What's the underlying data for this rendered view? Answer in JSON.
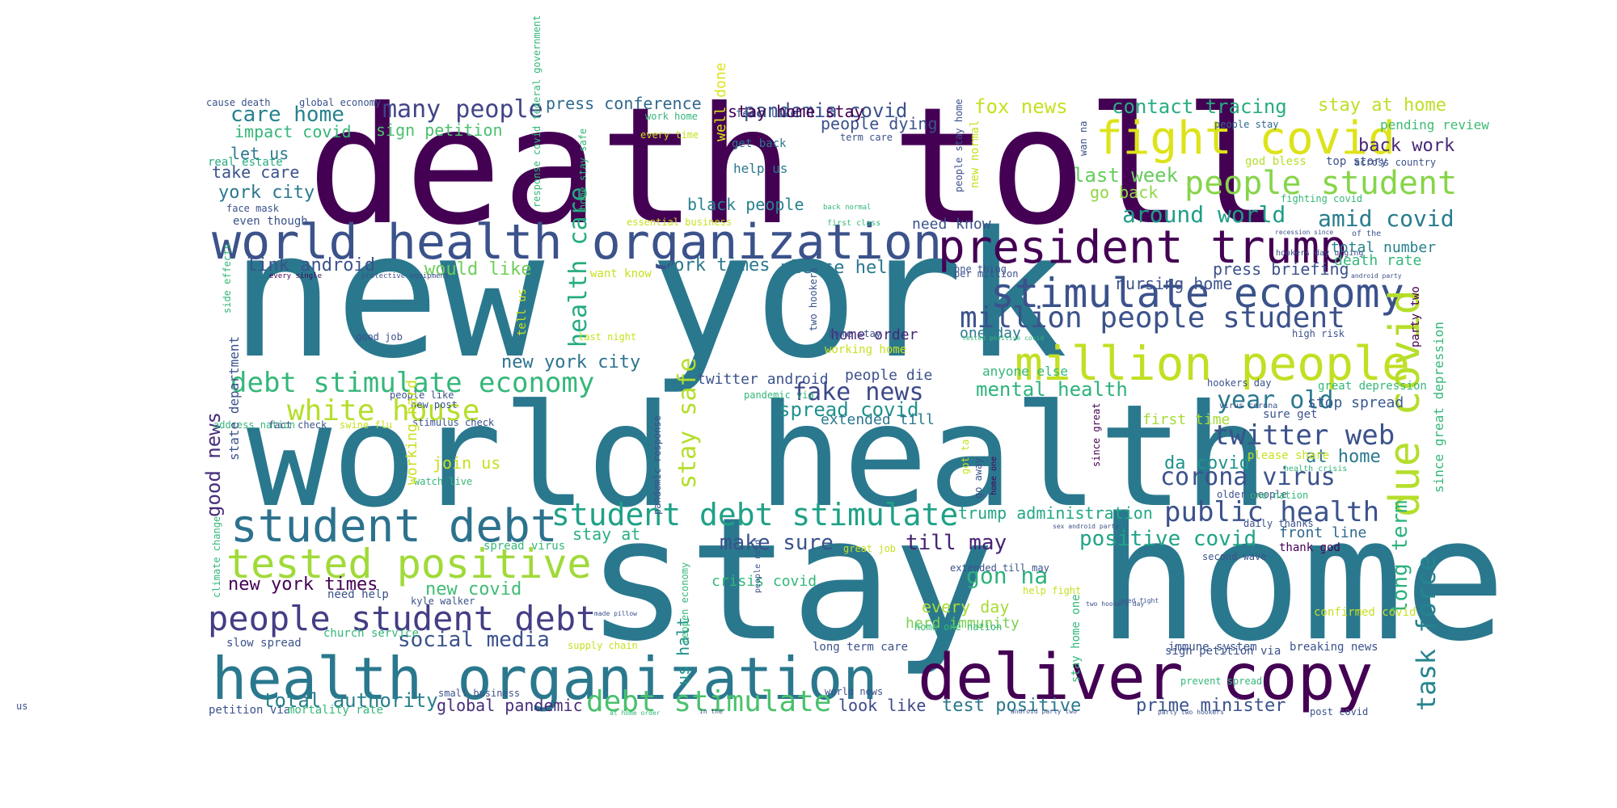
{
  "words": [
    {
      "text": "death toll",
      "color": "#440154"
    },
    {
      "text": "new york",
      "color": "#2a788e"
    },
    {
      "text": "world health",
      "color": "#2a788e"
    },
    {
      "text": "stay home",
      "color": "#2a788e"
    },
    {
      "text": "world health organization",
      "color": "#3b528b"
    },
    {
      "text": "health organization",
      "color": "#2a788e"
    },
    {
      "text": "deliver copy",
      "color": "#440154"
    },
    {
      "text": "president trump",
      "color": "#440154"
    },
    {
      "text": "fight covid",
      "color": "#dde318"
    },
    {
      "text": "stimulate economy",
      "color": "#3b528b"
    },
    {
      "text": "million people",
      "color": "#c2df23"
    },
    {
      "text": "million people student",
      "color": "#3b528b"
    },
    {
      "text": "people student",
      "color": "#86d549"
    },
    {
      "text": "student debt",
      "color": "#2c728e"
    },
    {
      "text": "tested positive",
      "color": "#a0da39"
    },
    {
      "text": "people student debt",
      "color": "#433e85"
    },
    {
      "text": "student debt stimulate",
      "color": "#1fa187"
    },
    {
      "text": "debt stimulate economy",
      "color": "#35b779"
    },
    {
      "text": "white house",
      "color": "#b5de2b"
    },
    {
      "text": "due covid",
      "color": "#b5de2b"
    },
    {
      "text": "task force",
      "color": "#25848e"
    },
    {
      "text": "twitter web",
      "color": "#3b528b"
    },
    {
      "text": "public health",
      "color": "#3b528b"
    },
    {
      "text": "corona virus",
      "color": "#3b528b"
    },
    {
      "text": "debt stimulate",
      "color": "#4ac16d"
    },
    {
      "text": "fake news",
      "color": "#3e4989"
    },
    {
      "text": "many people",
      "color": "#414487"
    },
    {
      "text": "health care",
      "color": "#25ab82"
    },
    {
      "text": "stay safe",
      "color": "#b5de2b"
    },
    {
      "text": "year old",
      "color": "#2a788e"
    },
    {
      "text": "around world",
      "color": "#1f9e89"
    },
    {
      "text": "amid covid",
      "color": "#287c8e"
    },
    {
      "text": "positive covid",
      "color": "#20a486"
    },
    {
      "text": "social media",
      "color": "#3b528b"
    },
    {
      "text": "care home",
      "color": "#26828e"
    },
    {
      "text": "pandemia covid",
      "color": "#3b528b"
    },
    {
      "text": "contact tracing",
      "color": "#27ad81"
    },
    {
      "text": "stay at home",
      "color": "#bddf26"
    },
    {
      "text": "fox news",
      "color": "#c8e020"
    },
    {
      "text": "press conference",
      "color": "#31688e"
    },
    {
      "text": "mental health",
      "color": "#2eb37c"
    },
    {
      "text": "long term",
      "color": "#2db27d"
    },
    {
      "text": "gon na",
      "color": "#2db27d"
    },
    {
      "text": "make sure",
      "color": "#3b528b"
    },
    {
      "text": "till may",
      "color": "#482374"
    },
    {
      "text": "spread covid",
      "color": "#21918c"
    },
    {
      "text": "last week",
      "color": "#67cc5c"
    },
    {
      "text": "back work",
      "color": "#482878"
    },
    {
      "text": "total authority",
      "color": "#277f8e"
    },
    {
      "text": "test positive",
      "color": "#2a788e"
    },
    {
      "text": "prime minister",
      "color": "#3b528b"
    },
    {
      "text": "new york city",
      "color": "#2c728e"
    },
    {
      "text": "new york times",
      "color": "#440154"
    },
    {
      "text": "good news",
      "color": "#472d7b"
    },
    {
      "text": "link android",
      "color": "#3b528b"
    },
    {
      "text": "york times",
      "color": "#2a788e"
    },
    {
      "text": "please help",
      "color": "#2a788e"
    },
    {
      "text": "would like",
      "color": "#6ece58"
    },
    {
      "text": "impact covid",
      "color": "#35b779"
    },
    {
      "text": "sign petition",
      "color": "#4ac16d"
    },
    {
      "text": "let us",
      "color": "#2a788e"
    },
    {
      "text": "take care",
      "color": "#3b528b"
    },
    {
      "text": "york city",
      "color": "#2a788e"
    },
    {
      "text": "black people",
      "color": "#26828e"
    },
    {
      "text": "people dying",
      "color": "#3b528b"
    },
    {
      "text": "go back",
      "color": "#8fd744"
    },
    {
      "text": "trump administration",
      "color": "#22a785"
    },
    {
      "text": "da covid",
      "color": "#21918c"
    },
    {
      "text": "at home",
      "color": "#2a788e"
    },
    {
      "text": "new covid",
      "color": "#3fbc73"
    },
    {
      "text": "global pandemic",
      "color": "#472d7b"
    },
    {
      "text": "look like",
      "color": "#3e4989"
    },
    {
      "text": "every day",
      "color": "#a8db34"
    },
    {
      "text": "herd immunity",
      "color": "#7ad151"
    },
    {
      "text": "crisis covid",
      "color": "#35b779"
    },
    {
      "text": "stay at",
      "color": "#29af7f"
    },
    {
      "text": "join us",
      "color": "#c8e020"
    },
    {
      "text": "us halt",
      "color": "#21918c"
    },
    {
      "text": "nursing home",
      "color": "#3b528b"
    },
    {
      "text": "press briefing",
      "color": "#3b528b"
    },
    {
      "text": "total number",
      "color": "#26828e"
    },
    {
      "text": "death rate",
      "color": "#35b779"
    },
    {
      "text": "stop spread",
      "color": "#38598c"
    },
    {
      "text": "first time",
      "color": "#a5db36"
    },
    {
      "text": "front line",
      "color": "#31688e"
    },
    {
      "text": "need know",
      "color": "#3b528b"
    },
    {
      "text": "twitter android",
      "color": "#3b528b"
    },
    {
      "text": "people die",
      "color": "#3b528b"
    },
    {
      "text": "extended till",
      "color": "#2a788e"
    },
    {
      "text": "home order",
      "color": "#482677"
    },
    {
      "text": "one day",
      "color": "#2a788e"
    },
    {
      "text": "well done",
      "color": "#dde318"
    },
    {
      "text": "help us",
      "color": "#2a788e"
    },
    {
      "text": "get back",
      "color": "#2a788e"
    },
    {
      "text": "feel like",
      "color": "#38598c"
    },
    {
      "text": "god bless",
      "color": "#b5de2b"
    },
    {
      "text": "top story",
      "color": "#3b528b"
    },
    {
      "text": "pending review",
      "color": "#3dbc74"
    },
    {
      "text": "people stay",
      "color": "#31688e"
    },
    {
      "text": "across country",
      "color": "#3b528b"
    },
    {
      "text": "real estate",
      "color": "#25ab82"
    },
    {
      "text": "global economy",
      "color": "#3b528b"
    },
    {
      "text": "cause death",
      "color": "#3b528b"
    },
    {
      "text": "even though",
      "color": "#3b528b"
    },
    {
      "text": "face mask",
      "color": "#3b528b"
    },
    {
      "text": "want know",
      "color": "#c8e020"
    },
    {
      "text": "need help",
      "color": "#3b528b"
    },
    {
      "text": "church service",
      "color": "#35b779"
    },
    {
      "text": "slow spread",
      "color": "#3b528b"
    },
    {
      "text": "petition via",
      "color": "#3b528b"
    },
    {
      "text": "mortality rate",
      "color": "#35b779"
    },
    {
      "text": "small business",
      "color": "#3b528b"
    },
    {
      "text": "supply chain",
      "color": "#c8e020"
    },
    {
      "text": "long term care",
      "color": "#3b528b"
    },
    {
      "text": "world news",
      "color": "#3b528b"
    },
    {
      "text": "immune system",
      "color": "#3b528b"
    },
    {
      "text": "sign petition via",
      "color": "#3b528b"
    },
    {
      "text": "breaking news",
      "color": "#3b528b"
    },
    {
      "text": "prevent spread",
      "color": "#35b779"
    },
    {
      "text": "post covid",
      "color": "#3b528b"
    },
    {
      "text": "confirmed covid",
      "color": "#c8e020"
    },
    {
      "text": "thank god",
      "color": "#440154"
    },
    {
      "text": "daily thanks",
      "color": "#3b528b"
    },
    {
      "text": "second wave",
      "color": "#3b528b"
    },
    {
      "text": "address nation",
      "color": "#35b779"
    },
    {
      "text": "fact check",
      "color": "#3b528b"
    },
    {
      "text": "swine flu",
      "color": "#c8e020"
    },
    {
      "text": "stimulus check",
      "color": "#3b528b"
    },
    {
      "text": "new post",
      "color": "#3b528b"
    },
    {
      "text": "people like",
      "color": "#3b528b"
    },
    {
      "text": "watch live",
      "color": "#35b779"
    },
    {
      "text": "spread virus",
      "color": "#35b779"
    },
    {
      "text": "great job",
      "color": "#c8e020"
    },
    {
      "text": "help fight",
      "color": "#c8e020"
    },
    {
      "text": "sure get",
      "color": "#3b528b"
    },
    {
      "text": "great depression",
      "color": "#35b779"
    },
    {
      "text": "please share",
      "color": "#c8e020"
    },
    {
      "text": "older people",
      "color": "#3b528b"
    },
    {
      "text": "one nation",
      "color": "#35b779"
    },
    {
      "text": "health crisis",
      "color": "#35b779"
    },
    {
      "text": "hookers day",
      "color": "#3b528b"
    },
    {
      "text": "virus corona",
      "color": "#3b528b"
    },
    {
      "text": "high risk",
      "color": "#3b528b"
    },
    {
      "text": "anyone else",
      "color": "#35b779"
    },
    {
      "text": "pandemic via",
      "color": "#35b779"
    },
    {
      "text": "working home",
      "color": "#c8e020"
    },
    {
      "text": "home stay",
      "color": "#3b528b"
    },
    {
      "text": "last night",
      "color": "#c8e020"
    },
    {
      "text": "good job",
      "color": "#3b528b"
    },
    {
      "text": "one thing",
      "color": "#3b528b"
    },
    {
      "text": "per million",
      "color": "#3b528b"
    },
    {
      "text": "work home",
      "color": "#35b779"
    },
    {
      "text": "every time",
      "color": "#c8e020"
    },
    {
      "text": "term care",
      "color": "#3b528b"
    },
    {
      "text": "essential business",
      "color": "#c8e020"
    },
    {
      "text": "first class",
      "color": "#35b779"
    },
    {
      "text": "back normal",
      "color": "#35b779"
    },
    {
      "text": "every single",
      "color": "#440154"
    },
    {
      "text": "protective equipment",
      "color": "#3b528b"
    },
    {
      "text": "hookers day urging",
      "color": "#3b528b"
    },
    {
      "text": "of the",
      "color": "#3b528b"
    },
    {
      "text": "recession since",
      "color": "#3b528b"
    },
    {
      "text": "android party",
      "color": "#3b528b"
    },
    {
      "text": "fighting covid",
      "color": "#35b779"
    },
    {
      "text": "tested positive covid",
      "color": "#35b779"
    },
    {
      "text": "sex android party",
      "color": "#3b528b"
    },
    {
      "text": "two hookers day",
      "color": "#3b528b"
    },
    {
      "text": "used fight",
      "color": "#3b528b"
    },
    {
      "text": "kyle walker",
      "color": "#3b528b"
    },
    {
      "text": "home one nation",
      "color": "#35b779"
    },
    {
      "text": "at home order",
      "color": "#35b779"
    },
    {
      "text": "in the",
      "color": "#3b528b"
    },
    {
      "text": "android party two",
      "color": "#3b528b"
    },
    {
      "text": "party two hookers",
      "color": "#3b528b"
    },
    {
      "text": "made pillow",
      "color": "#3b528b"
    },
    {
      "text": "party two",
      "color": "#440154"
    },
    {
      "text": "since great depression",
      "color": "#35b779"
    },
    {
      "text": "response covid federal government",
      "color": "#35b779"
    },
    {
      "text": "home stay safe",
      "color": "#35b779"
    },
    {
      "text": "people stay home",
      "color": "#3b528b"
    },
    {
      "text": "new normal",
      "color": "#c8e020"
    },
    {
      "text": "wan na",
      "color": "#3b528b"
    },
    {
      "text": "tell us",
      "color": "#c8e020"
    },
    {
      "text": "side effects",
      "color": "#35b779"
    },
    {
      "text": "state department",
      "color": "#3b528b"
    },
    {
      "text": "climate change",
      "color": "#35b779"
    },
    {
      "text": "working hard",
      "color": "#c8e020"
    },
    {
      "text": "virus covid",
      "color": "#2a788e"
    },
    {
      "text": "pandemic response",
      "color": "#3b528b"
    },
    {
      "text": "reopen economy",
      "color": "#35b779"
    },
    {
      "text": "people need",
      "color": "#3b528b"
    },
    {
      "text": "two hookers",
      "color": "#3b528b"
    },
    {
      "text": "go away",
      "color": "#3b528b"
    },
    {
      "text": "got ta",
      "color": "#c8e020"
    },
    {
      "text": "home one",
      "color": "#440154"
    },
    {
      "text": "since great",
      "color": "#440154"
    },
    {
      "text": "stay home one",
      "color": "#35b779"
    },
    {
      "text": "extended till may",
      "color": "#3b528b"
    },
    {
      "text": "stay home stay",
      "color": "#440154"
    },
    {
      "text": "us",
      "color": "#3b528b"
    }
  ]
}
